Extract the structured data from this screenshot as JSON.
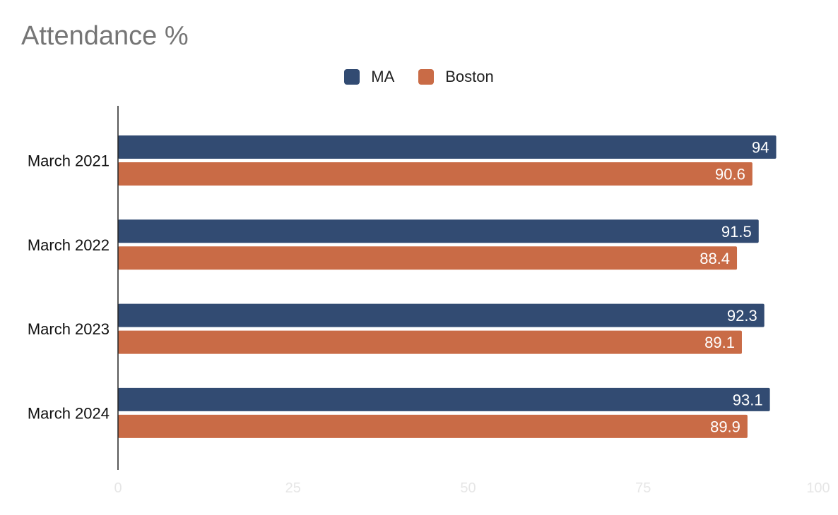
{
  "chart_data": {
    "type": "bar",
    "orientation": "horizontal",
    "title": "Attendance %",
    "categories": [
      "March 2021",
      "March 2022",
      "March 2023",
      "March 2024"
    ],
    "series": [
      {
        "name": "MA",
        "color": "#324b72",
        "values": [
          94,
          91.5,
          92.3,
          93.1
        ]
      },
      {
        "name": "Boston",
        "color": "#c96b46",
        "values": [
          90.6,
          88.4,
          89.1,
          89.9
        ]
      }
    ],
    "xlim": [
      0,
      100
    ],
    "xticks": [
      "0",
      "25",
      "50",
      "75",
      "100"
    ],
    "legend_position": "top",
    "grid": false,
    "data_labels": true
  }
}
